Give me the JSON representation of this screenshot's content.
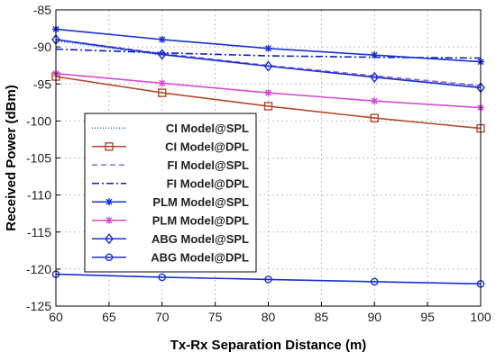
{
  "chart_data": {
    "type": "line",
    "title": "",
    "xlabel": "Tx-Rx Separation Distance (m)",
    "ylabel": "Received Power (dBm)",
    "xlim": [
      60,
      100
    ],
    "ylim": [
      -125,
      -85
    ],
    "xticks": [
      60,
      65,
      70,
      75,
      80,
      85,
      90,
      95,
      100
    ],
    "yticks": [
      -85,
      -90,
      -95,
      -100,
      -105,
      -110,
      -115,
      -120,
      -125
    ],
    "grid": true,
    "legend_position": "center-left",
    "series": [
      {
        "name": "CI Model@SPL",
        "color": "#1f77b4",
        "dash": "1,2",
        "marker": "none",
        "x": [
          60,
          70,
          80,
          90,
          100
        ],
        "y": [
          -89.2,
          -91.1,
          -92.6,
          -94.0,
          -95.3
        ]
      },
      {
        "name": "CI Model@DPL",
        "color": "#b5472a",
        "dash": "",
        "marker": "square",
        "x": [
          60,
          70,
          80,
          90,
          100
        ],
        "y": [
          -94.0,
          -96.2,
          -98.0,
          -99.6,
          -101.0
        ]
      },
      {
        "name": "FI Model@SPL",
        "color": "#a05ad0",
        "dash": "6,4",
        "marker": "none",
        "x": [
          60,
          70,
          80,
          90,
          100
        ],
        "y": [
          -89.0,
          -90.9,
          -92.5,
          -93.9,
          -95.2
        ]
      },
      {
        "name": "FI Model@DPL",
        "color": "#0a1fc8",
        "dash": "8,3,2,3",
        "marker": "none",
        "x": [
          60,
          70,
          80,
          90,
          100
        ],
        "y": [
          -90.3,
          -90.8,
          -91.2,
          -91.4,
          -91.5
        ]
      },
      {
        "name": "PLM Model@SPL",
        "color": "#1a2fd6",
        "dash": "",
        "marker": "star",
        "x": [
          60,
          70,
          80,
          90,
          100
        ],
        "y": [
          -87.6,
          -89.0,
          -90.2,
          -91.1,
          -92.0
        ]
      },
      {
        "name": "PLM Model@DPL",
        "color": "#d64ad6",
        "dash": "",
        "marker": "star",
        "x": [
          60,
          70,
          80,
          90,
          100
        ],
        "y": [
          -93.6,
          -94.9,
          -96.2,
          -97.3,
          -98.2
        ]
      },
      {
        "name": "ABG Model@SPL",
        "color": "#1a2fd6",
        "dash": "",
        "marker": "diamond",
        "x": [
          60,
          70,
          80,
          90,
          100
        ],
        "y": [
          -89.0,
          -91.0,
          -92.6,
          -94.1,
          -95.5
        ]
      },
      {
        "name": "ABG Model@DPL",
        "color": "#1a2fd6",
        "dash": "",
        "marker": "circle",
        "x": [
          60,
          70,
          80,
          90,
          100
        ],
        "y": [
          -120.7,
          -121.1,
          -121.4,
          -121.7,
          -122.0
        ]
      }
    ]
  }
}
